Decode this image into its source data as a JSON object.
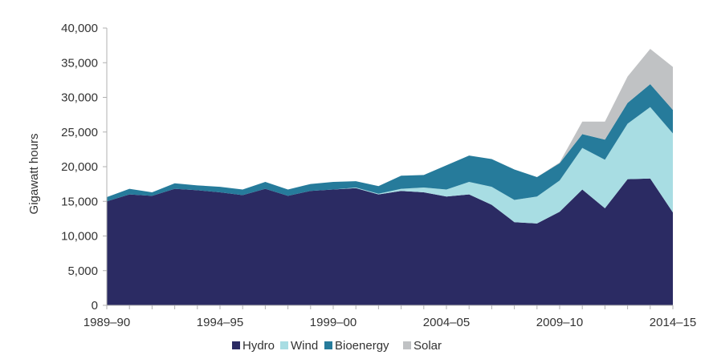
{
  "chart_data": {
    "type": "area",
    "stacked": true,
    "ylabel": "Gigawatt hours",
    "xlabel": "",
    "ylim": [
      0,
      40000
    ],
    "yticks": [
      "0",
      "5,000",
      "10,000",
      "15,000",
      "20,000",
      "25,000",
      "30,000",
      "35,000",
      "40,000"
    ],
    "xtick_labels": [
      "1989–90",
      "1994–95",
      "1999–00",
      "2004–05",
      "2009–10",
      "2014–15"
    ],
    "xtick_years": [
      1989,
      1994,
      1999,
      2004,
      2009,
      2014
    ],
    "x": [
      1989,
      1990,
      1991,
      1992,
      1993,
      1994,
      1995,
      1996,
      1997,
      1998,
      1999,
      2000,
      2001,
      2002,
      2003,
      2004,
      2005,
      2006,
      2007,
      2008,
      2009,
      2010,
      2011,
      2012,
      2013,
      2014
    ],
    "series": [
      {
        "name": "Hydro",
        "color": "#2b2b63",
        "values": [
          15000,
          16000,
          15800,
          16800,
          16600,
          16300,
          15900,
          16800,
          15800,
          16500,
          16700,
          16900,
          16000,
          16500,
          16300,
          15700,
          16000,
          14500,
          12000,
          11800,
          13500,
          16700,
          14000,
          18200,
          18300,
          13400
        ]
      },
      {
        "name": "Wind",
        "color": "#a8dde3",
        "values": [
          0,
          0,
          0,
          0,
          0,
          0,
          0,
          0,
          0,
          0,
          0,
          100,
          100,
          300,
          700,
          1000,
          1800,
          2600,
          3200,
          3900,
          4500,
          6000,
          7000,
          8000,
          10300,
          11400
        ]
      },
      {
        "name": "Bioenergy",
        "color": "#267b9b",
        "values": [
          600,
          800,
          500,
          800,
          700,
          800,
          800,
          1000,
          900,
          1000,
          1100,
          900,
          1100,
          1900,
          1800,
          3500,
          3800,
          4000,
          4400,
          2800,
          2500,
          2000,
          2900,
          3000,
          3300,
          3400
        ]
      },
      {
        "name": "Solar",
        "color": "#c0c2c4",
        "values": [
          0,
          0,
          0,
          0,
          0,
          0,
          0,
          0,
          0,
          0,
          0,
          0,
          0,
          0,
          0,
          0,
          0,
          0,
          0,
          0,
          100,
          1800,
          2600,
          3800,
          5100,
          6200
        ]
      }
    ],
    "legend": {
      "position": "bottom"
    },
    "grid": false,
    "axis_color": "#b0b0b0"
  }
}
